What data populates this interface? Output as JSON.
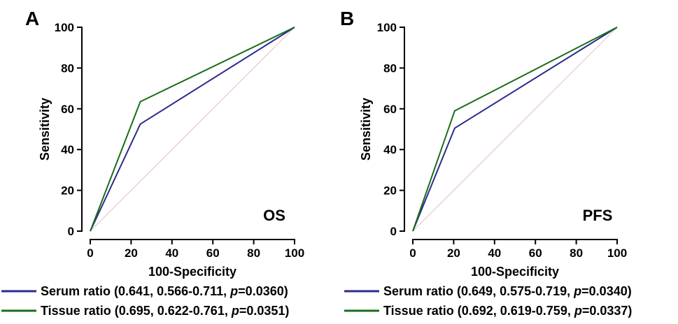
{
  "chart_data": [
    {
      "type": "line",
      "panel": "A",
      "tag": "OS",
      "xlabel": "100-Specificity",
      "ylabel": "Sensitivity",
      "xlim": [
        0,
        100
      ],
      "ylim": [
        0,
        100
      ],
      "xticks": [
        0,
        20,
        40,
        60,
        80,
        100
      ],
      "yticks": [
        0,
        20,
        40,
        60,
        80,
        100
      ],
      "reference_line": true,
      "series": [
        {
          "name": "Serum ratio",
          "color": "#2b2b8f",
          "legend_text": "Serum ratio (0.641, 0.566-0.711, ",
          "p_label": "p",
          "p_value": "=0.0360)",
          "points": [
            [
              0,
              0
            ],
            [
              24.5,
              52.5
            ],
            [
              100,
              100
            ]
          ]
        },
        {
          "name": "Tissue ratio",
          "color": "#1a6e1a",
          "legend_text": "Tissue ratio (0.695, 0.622-0.761, ",
          "p_label": "p",
          "p_value": "=0.0351)",
          "points": [
            [
              0,
              0
            ],
            [
              24.5,
              63.5
            ],
            [
              100,
              100
            ]
          ]
        }
      ]
    },
    {
      "type": "line",
      "panel": "B",
      "tag": "PFS",
      "xlabel": "100-Specificity",
      "ylabel": "Sensitivity",
      "xlim": [
        0,
        100
      ],
      "ylim": [
        0,
        100
      ],
      "xticks": [
        0,
        20,
        40,
        60,
        80,
        100
      ],
      "yticks": [
        0,
        20,
        40,
        60,
        80,
        100
      ],
      "reference_line": true,
      "series": [
        {
          "name": "Serum ratio",
          "color": "#2b2b8f",
          "legend_text": "Serum ratio (0.649, 0.575-0.719, ",
          "p_label": "p",
          "p_value": "=0.0340)",
          "points": [
            [
              0,
              0
            ],
            [
              20.5,
              50.5
            ],
            [
              100,
              100
            ]
          ]
        },
        {
          "name": "Tissue ratio",
          "color": "#1a6e1a",
          "legend_text": "Tissue ratio (0.692, 0.619-0.759, ",
          "p_label": "p",
          "p_value": "=0.0337)",
          "points": [
            [
              0,
              0
            ],
            [
              20.5,
              59
            ],
            [
              100,
              100
            ]
          ]
        }
      ]
    }
  ],
  "colors": {
    "axis": "#000000",
    "reference": "#e6c8d2"
  }
}
